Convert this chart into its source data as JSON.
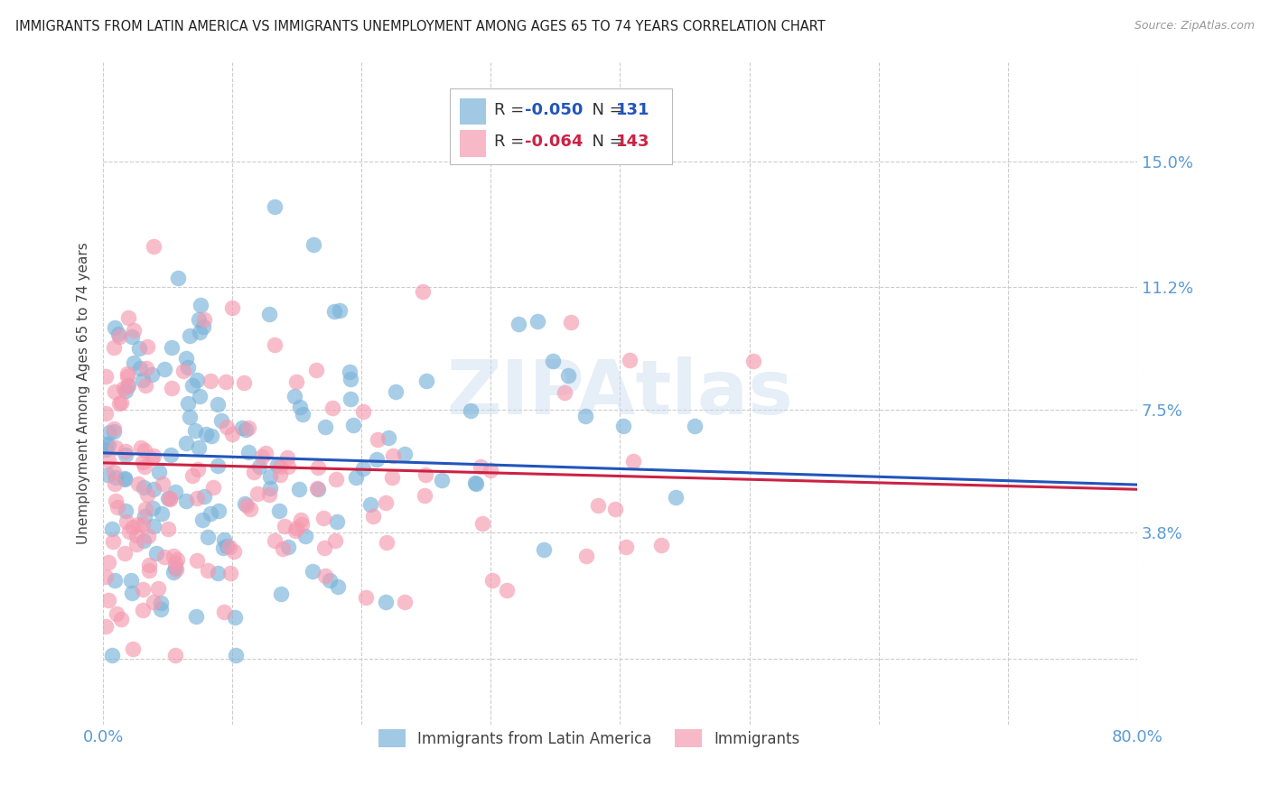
{
  "title": "IMMIGRANTS FROM LATIN AMERICA VS IMMIGRANTS UNEMPLOYMENT AMONG AGES 65 TO 74 YEARS CORRELATION CHART",
  "source": "Source: ZipAtlas.com",
  "ylabel": "Unemployment Among Ages 65 to 74 years",
  "xlim": [
    0.0,
    80.0
  ],
  "ylim": [
    -2.0,
    18.0
  ],
  "ytick_vals": [
    0.0,
    3.8,
    7.5,
    11.2,
    15.0
  ],
  "ytick_labels": [
    "",
    "3.8%",
    "7.5%",
    "11.2%",
    "15.0%"
  ],
  "legend_label1": "Immigrants from Latin America",
  "legend_label2": "Immigrants",
  "blue_color": "#7ab3d9",
  "pink_color": "#f59ab0",
  "trend_blue": "#2255bb",
  "trend_pink": "#cc2244",
  "r_blue": -0.05,
  "r_pink": -0.064,
  "n_blue": 131,
  "n_pink": 143,
  "watermark": "ZIPAtlas",
  "background_color": "#ffffff",
  "grid_color": "#cccccc",
  "title_color": "#222222",
  "tick_label_color": "#5b9bd5",
  "seed_blue": 7,
  "seed_pink": 13,
  "trend_intercept_blue": 6.2,
  "trend_slope_blue": -0.012,
  "trend_intercept_pink": 5.9,
  "trend_slope_pink": -0.01
}
